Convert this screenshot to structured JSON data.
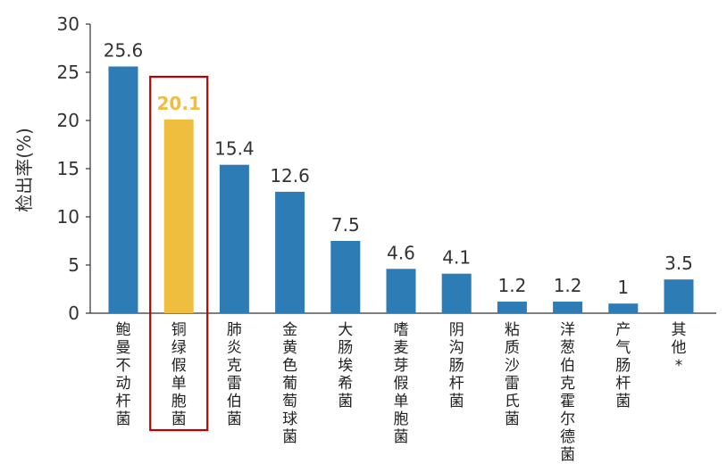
{
  "chart_data": {
    "type": "bar",
    "ylabel": "检出率(%)",
    "ylim": [
      0,
      30
    ],
    "yticks": [
      "0",
      "5",
      "10",
      "15",
      "20",
      "25",
      "30"
    ],
    "categories": [
      "鲍曼不动杆菌",
      "铜绿假单胞菌",
      "肺炎克雷伯菌",
      "金黄色葡萄球菌",
      "大肠埃希菌",
      "嗜麦芽假单胞菌",
      "阴沟肠杆菌",
      "粘质沙雷氏菌",
      "洋葱伯克霍尔德菌",
      "产气肠杆菌",
      "其他*"
    ],
    "values": [
      25.6,
      20.1,
      15.4,
      12.6,
      7.5,
      4.6,
      4.1,
      1.2,
      1.2,
      1,
      3.5
    ],
    "value_labels": [
      "25.6",
      "20.1",
      "15.4",
      "12.6",
      "7.5",
      "4.6",
      "4.1",
      "1.2",
      "1.2",
      "1",
      "3.5"
    ],
    "highlight_index": 1,
    "colors": {
      "bar": "#2e7cb6",
      "highlight": "#f0be3e",
      "highlight_box": "#c00000",
      "axis": "#333333"
    }
  }
}
